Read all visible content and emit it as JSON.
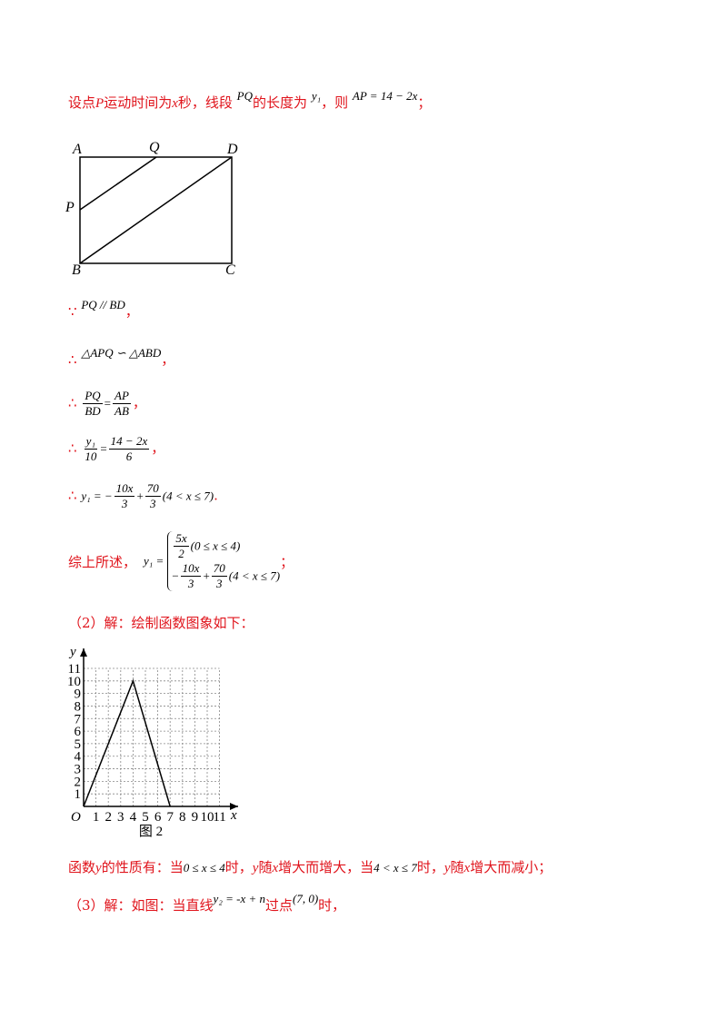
{
  "intro": [
    "设点",
    "P",
    "运动时间为",
    "x",
    "秒，线段",
    "PQ",
    "的长度为",
    "y₁",
    "，则",
    "AP = 14 − 2x",
    "；"
  ],
  "diagram": {
    "labels": [
      "A",
      "Q",
      "D",
      "P",
      "B",
      "C"
    ]
  },
  "steps": [
    {
      "mark": "∵",
      "expr": "PQ // BD",
      "end": "，"
    },
    {
      "mark": "∴",
      "expr": "△APQ ∽ △ABD",
      "end": "，"
    },
    {
      "mark": "∴",
      "lhs": {
        "num": "PQ",
        "den": "BD"
      },
      "eq": "=",
      "rhs": {
        "num": "AP",
        "den": "AB"
      },
      "end": "，"
    },
    {
      "mark": "∴",
      "lhs": {
        "num": "y₁",
        "den": "10"
      },
      "eq": "=",
      "rhs": {
        "num": "14 − 2x",
        "den": "6"
      },
      "end": "，"
    },
    {
      "mark": "∴",
      "lhs": "y₁ = −",
      "f1": {
        "num": "10x",
        "den": "3"
      },
      "plus": "+",
      "f2": {
        "num": "70",
        "den": "3"
      },
      "cond": "(4 < x ≤ 7)",
      "end": "."
    }
  ],
  "summary": {
    "text": "综上所述，",
    "lhs": "y₁ =",
    "case1": {
      "num": "5x",
      "den": "2",
      "cond": "(0 ≤ x ≤ 4)"
    },
    "case2": {
      "sign": "−",
      "f1": {
        "num": "10x",
        "den": "3"
      },
      "plus": "+",
      "f2": {
        "num": "70",
        "den": "3"
      },
      "cond": "(4 < x ≤ 7)"
    },
    "end": "；"
  },
  "part2": "（2）解：绘制函数图象如下：",
  "graph": {
    "x": [
      0,
      4,
      7
    ],
    "y": [
      0,
      10,
      0
    ],
    "xlim": [
      0,
      11
    ],
    "ylim": [
      0,
      11
    ],
    "xticks": [
      1,
      2,
      3,
      4,
      5,
      6,
      7,
      8,
      9,
      10,
      11
    ],
    "yticks": [
      1,
      2,
      3,
      4,
      5,
      6,
      7,
      8,
      9,
      10,
      11
    ],
    "origin_label": "O",
    "x_label": "x",
    "y_label": "y",
    "caption": "图 2"
  },
  "property": [
    "函数",
    "y",
    "的性质有：当",
    "0 ≤ x ≤ 4",
    "时，",
    "y",
    "随",
    "x",
    "增大而增大，当",
    "4 < x ≤ 7",
    "时，",
    "y",
    "随",
    "x",
    "增大而减小；"
  ],
  "part3": [
    "（3）解：如图：当直线",
    "y₂ = -x + n",
    "过点",
    "(7, 0)",
    "时，"
  ]
}
